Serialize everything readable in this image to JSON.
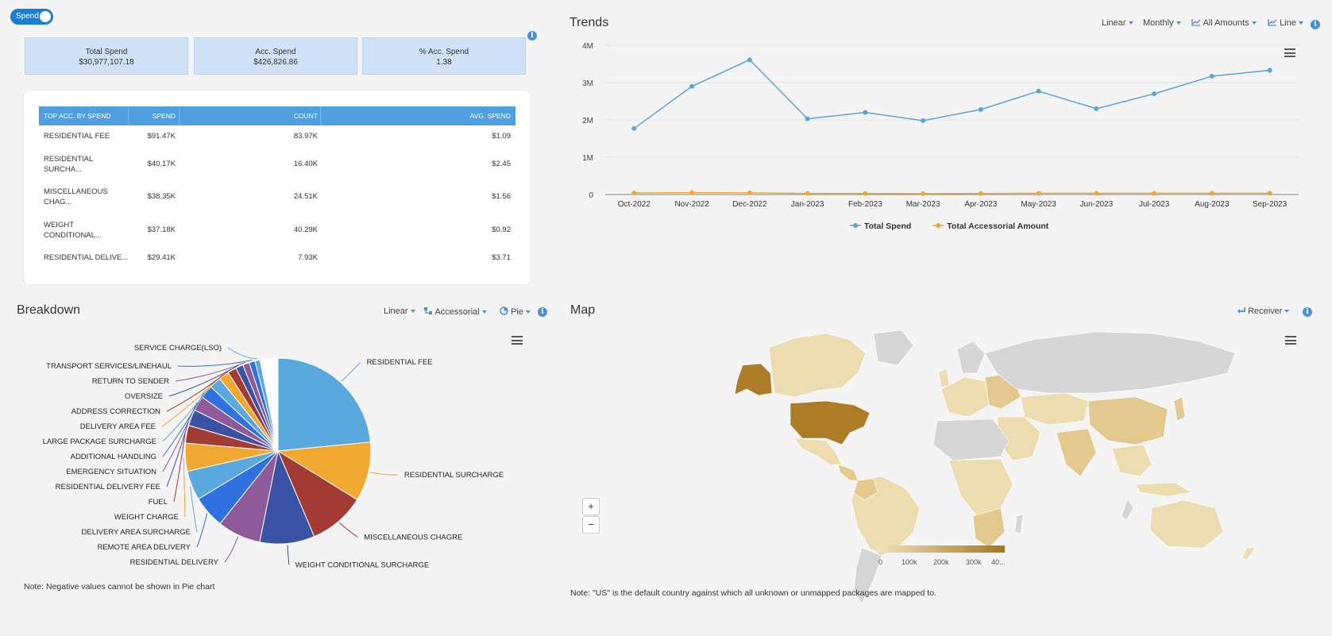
{
  "toggle": {
    "label": "Spend"
  },
  "kpis": [
    {
      "label": "Total Spend",
      "value": "$30,977,107.18"
    },
    {
      "label": "Acc. Spend",
      "value": "$426,826.86"
    },
    {
      "label": "% Acc. Spend",
      "value": "1.38"
    }
  ],
  "table": {
    "headers": [
      "TOP ACC. BY SPEND",
      "SPEND",
      "COUNT",
      "AVG. SPEND"
    ],
    "rows": [
      {
        "name": "RESIDENTIAL FEE",
        "spend": "$91.47K",
        "count": "83.97K",
        "avg": "$1.09"
      },
      {
        "name": "RESIDENTIAL SURCHA...",
        "spend": "$40.17K",
        "count": "16.40K",
        "avg": "$2.45"
      },
      {
        "name": "MISCELLANEOUS CHAG...",
        "spend": "$38.35K",
        "count": "24.51K",
        "avg": "$1.56"
      },
      {
        "name": "WEIGHT CONDITIONAL...",
        "spend": "$37.18K",
        "count": "40.29K",
        "avg": "$0.92"
      },
      {
        "name": "RESIDENTIAL DELIVE...",
        "spend": "$29.41K",
        "count": "7.93K",
        "avg": "$3.71"
      }
    ]
  },
  "trends": {
    "title": "Trends",
    "controls": {
      "scale": "Linear",
      "period": "Monthly",
      "amounts": "All Amounts",
      "chart": "Line"
    }
  },
  "breakdown": {
    "title": "Breakdown",
    "controls": {
      "scale": "Linear",
      "group": "Accessorial",
      "chart": "Pie"
    },
    "note": "Note: Negative values cannot be shown in Pie chart"
  },
  "map": {
    "title": "Map",
    "controls": {
      "group": "Receiver"
    },
    "zoom_in": "+",
    "zoom_out": "−",
    "legend_ticks": [
      "0",
      "100k",
      "200k",
      "300k",
      "40..."
    ],
    "note": "Note: \"US\" is the default country against which all unknown or unmapped packages are mapped to."
  },
  "chart_data": [
    {
      "type": "line",
      "x": [
        "Oct-2022",
        "Nov-2022",
        "Dec-2022",
        "Jan-2023",
        "Feb-2023",
        "Mar-2023",
        "Apr-2023",
        "May-2023",
        "Jun-2023",
        "Jul-2023",
        "Aug-2023",
        "Sep-2023"
      ],
      "yticks": [
        "0",
        "1M",
        "2M",
        "3M",
        "4M"
      ],
      "ylim": [
        0,
        4000000
      ],
      "grid": true,
      "legend_position": "bottom",
      "series": [
        {
          "name": "Total Spend",
          "color": "#5ba3dc",
          "values": [
            1770000,
            2900000,
            3610000,
            2030000,
            2200000,
            1980000,
            2280000,
            2770000,
            2300000,
            2700000,
            3170000,
            3330000
          ]
        },
        {
          "name": "Total Accessorial Amount",
          "color": "#f0a830",
          "values": [
            40000,
            50000,
            45000,
            30000,
            30000,
            25000,
            30000,
            35000,
            35000,
            35000,
            35000,
            35000
          ]
        }
      ]
    },
    {
      "type": "pie",
      "slices": [
        {
          "label": "RESIDENTIAL FEE",
          "value": 91.47,
          "color": "#5ba8df"
        },
        {
          "label": "RESIDENTIAL SURCHARGE",
          "value": 40.17,
          "color": "#f0a830"
        },
        {
          "label": "MISCELLANEOUS CHAGRE",
          "value": 38.35,
          "color": "#a33b35"
        },
        {
          "label": "WEIGHT CONDITIONAL SURCHARGE",
          "value": 37.18,
          "color": "#3a52a3"
        },
        {
          "label": "RESIDENTIAL DELIVERY",
          "value": 29.41,
          "color": "#8e5a9a"
        },
        {
          "label": "REMOTE AREA DELIVERY",
          "value": 22,
          "color": "#3170df"
        },
        {
          "label": "DELIVERY AREA SURCHARGE",
          "value": 20,
          "color": "#5ba8df"
        },
        {
          "label": "WEIGHT CHARGE",
          "value": 19,
          "color": "#f0a830"
        },
        {
          "label": "FUEL",
          "value": 12,
          "color": "#a33b35"
        },
        {
          "label": "RESIDENTIAL DELIVERY FEE",
          "value": 11,
          "color": "#3a52a3"
        },
        {
          "label": "EMERGENCY SITUATION",
          "value": 10,
          "color": "#8e5a9a"
        },
        {
          "label": "ADDITIONAL HANDLING",
          "value": 9,
          "color": "#3170df"
        },
        {
          "label": "LARGE PACKAGE SURCHARGE",
          "value": 8,
          "color": "#5ba8df"
        },
        {
          "label": "DELIVERY AREA FEE",
          "value": 7,
          "color": "#f0a830"
        },
        {
          "label": "ADDRESS CORRECTION",
          "value": 6,
          "color": "#a33b35"
        },
        {
          "label": "OVERSIZE",
          "value": 5,
          "color": "#3a52a3"
        },
        {
          "label": "RETURN TO SENDER",
          "value": 4.5,
          "color": "#8e5a9a"
        },
        {
          "label": "TRANSPORT SERVICES/LINEHAUL",
          "value": 4,
          "color": "#3170df"
        },
        {
          "label": "SERVICE CHARGE(LSO)",
          "value": 3.5,
          "color": "#5ba8df"
        }
      ],
      "tail_slices": 28
    }
  ]
}
